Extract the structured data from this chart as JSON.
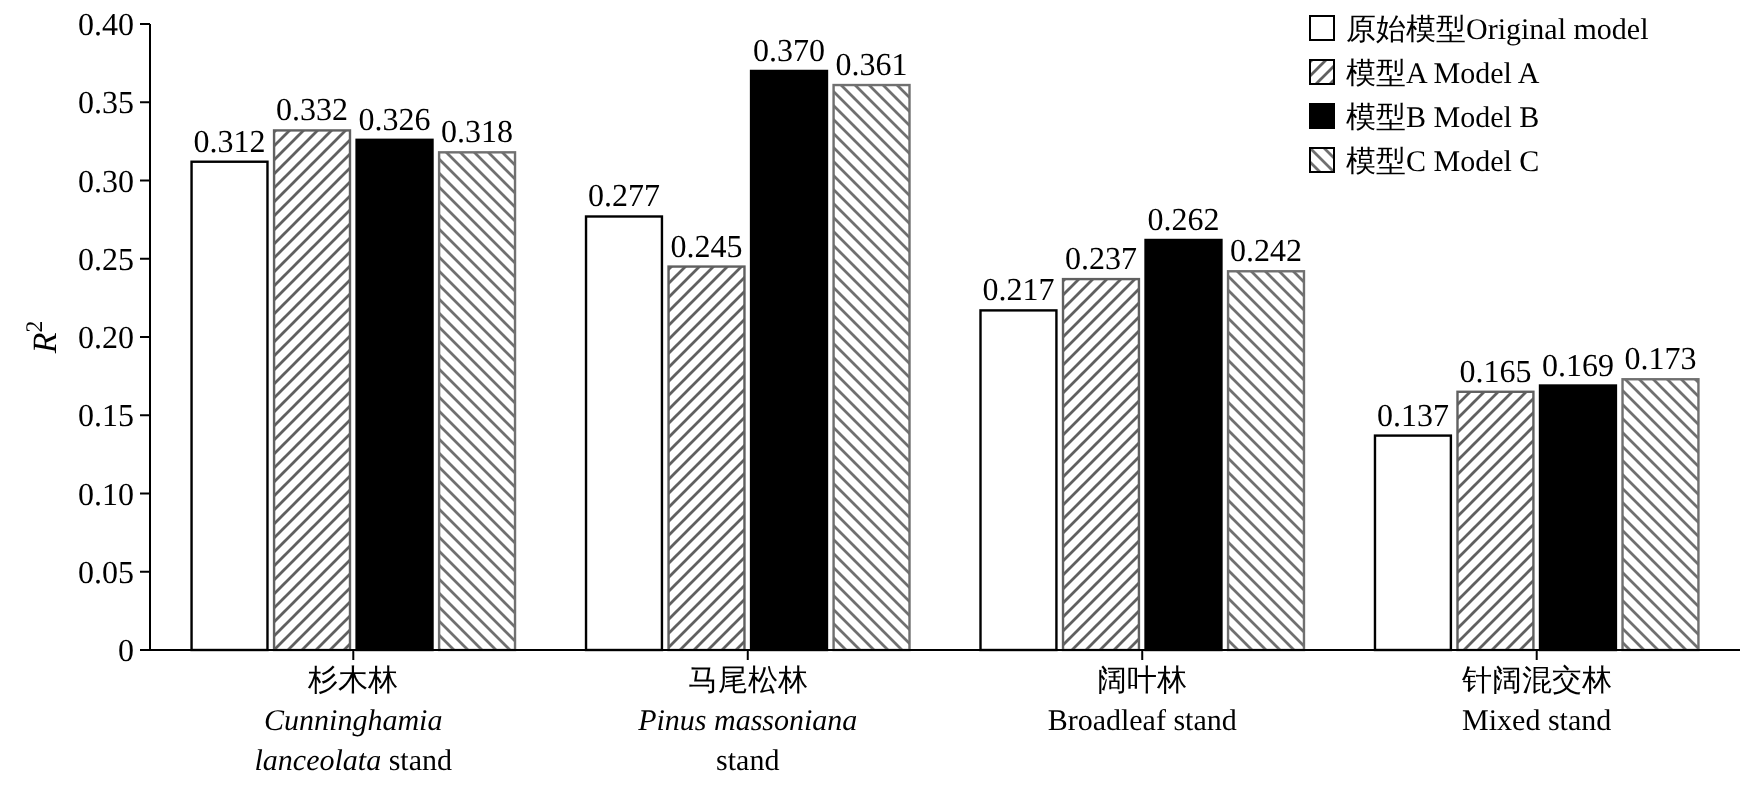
{
  "chart_data": {
    "type": "bar",
    "ylabel": "R$^{2}$",
    "categories": [
      "杉木林\nCunninghamia\nlanceolata stand",
      "马尾松林\nPinus massoniana\nstand",
      "阔叶林\nBroadleaf stand",
      "针阔混交林\nMixed stand"
    ],
    "series": [
      {
        "name": "原始模型Original model",
        "color": "#ffffff",
        "values": [
          0.312,
          0.277,
          0.217,
          0.137
        ],
        "value_labels": [
          "0.312",
          "0.277",
          "0.217",
          "0.137"
        ]
      },
      {
        "name": "模型A Model A",
        "color": "#606060",
        "values": [
          0.332,
          0.245,
          0.237,
          0.165
        ],
        "value_labels": [
          "0.332",
          "0.245",
          "0.237",
          "0.165"
        ]
      },
      {
        "name": "模型B Model B",
        "color": "#000000",
        "values": [
          0.326,
          0.37,
          0.262,
          0.169
        ],
        "value_labels": [
          "0.326",
          "0.370",
          "0.262",
          "0.169"
        ]
      },
      {
        "name": "模型C Model C",
        "color": "#707070",
        "values": [
          0.318,
          0.361,
          0.242,
          0.173
        ],
        "value_labels": [
          "0.318",
          "0.361",
          "0.242",
          "0.173"
        ]
      }
    ],
    "ylim": [
      0,
      0.4
    ],
    "yticks": [
      0,
      0.05,
      {
        "value": 0.1,
        "label": "0.10"
      },
      0.15,
      {
        "value": 0.2,
        "label": "0.20"
      },
      0.25,
      {
        "value": 0.3,
        "label": "0.30"
      },
      0.35,
      {
        "value": 0.4,
        "label": "0.40"
      }
    ],
    "legend": "top right",
    "grid": false
  }
}
